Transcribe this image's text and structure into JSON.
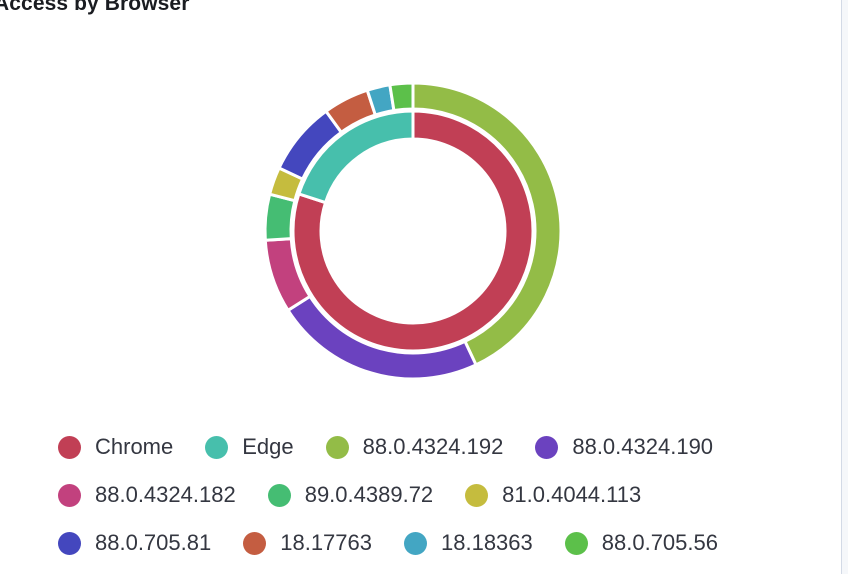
{
  "panel": {
    "title": "Access by Browser"
  },
  "chart_data": {
    "type": "pie",
    "title": "Access by Browser",
    "donut": true,
    "legend_position": "bottom",
    "rings": [
      {
        "ring": "inner",
        "slices": [
          {
            "name": "Chrome",
            "value": 80,
            "color": "#c13f55"
          },
          {
            "name": "Edge",
            "value": 20,
            "color": "#47bfac"
          }
        ]
      },
      {
        "ring": "outer",
        "slices": [
          {
            "name": "88.0.4324.192",
            "value": 43,
            "color": "#93bc47"
          },
          {
            "name": "88.0.4324.190",
            "value": 23,
            "color": "#6b42bf"
          },
          {
            "name": "88.0.4324.182",
            "value": 8,
            "color": "#c2417e"
          },
          {
            "name": "89.0.4389.72",
            "value": 5,
            "color": "#45bd73"
          },
          {
            "name": "81.0.4044.113",
            "value": 3,
            "color": "#c5bc3e"
          },
          {
            "name": "88.0.705.81",
            "value": 8,
            "color": "#4447be"
          },
          {
            "name": "18.17763",
            "value": 5,
            "color": "#c45d41"
          },
          {
            "name": "18.18363",
            "value": 2.5,
            "color": "#43a6c3"
          },
          {
            "name": "88.0.705.56",
            "value": 2.5,
            "color": "#5cc04a"
          }
        ]
      }
    ]
  },
  "legend": {
    "rows": [
      [
        {
          "label": "Chrome",
          "color": "#c13f55"
        },
        {
          "label": "Edge",
          "color": "#47bfac"
        },
        {
          "label": "88.0.4324.192",
          "color": "#93bc47"
        },
        {
          "label": "88.0.4324.190",
          "color": "#6b42bf"
        }
      ],
      [
        {
          "label": "88.0.4324.182",
          "color": "#c2417e"
        },
        {
          "label": "89.0.4389.72",
          "color": "#45bd73"
        },
        {
          "label": "81.0.4044.113",
          "color": "#c5bc3e"
        }
      ],
      [
        {
          "label": "88.0.705.81",
          "color": "#4447be"
        },
        {
          "label": "18.17763",
          "color": "#c45d41"
        },
        {
          "label": "18.18363",
          "color": "#43a6c3"
        },
        {
          "label": "88.0.705.56",
          "color": "#5cc04a"
        }
      ]
    ]
  }
}
